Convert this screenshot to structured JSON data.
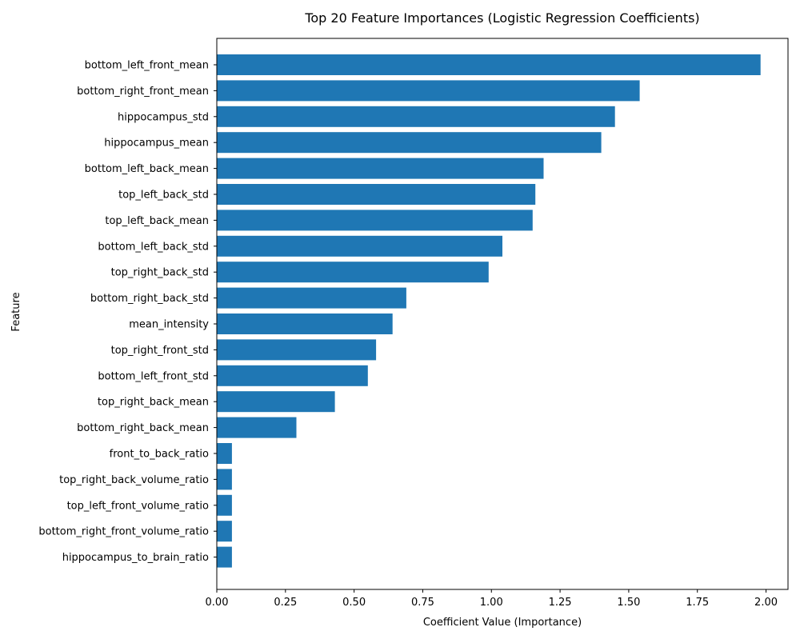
{
  "chart_data": {
    "type": "bar",
    "orientation": "horizontal",
    "title": "Top 20 Feature Importances (Logistic Regression Coefficients)",
    "xlabel": "Coefficient Value (Importance)",
    "ylabel": "Feature",
    "xlim": [
      0,
      2.08
    ],
    "x_ticks": [
      "0.00",
      "0.25",
      "0.50",
      "0.75",
      "1.00",
      "1.25",
      "1.50",
      "1.75",
      "2.00"
    ],
    "grid": false,
    "bar_color": "#1f77b4",
    "categories": [
      "bottom_left_front_mean",
      "bottom_right_front_mean",
      "hippocampus_std",
      "hippocampus_mean",
      "bottom_left_back_mean",
      "top_left_back_std",
      "top_left_back_mean",
      "bottom_left_back_std",
      "top_right_back_std",
      "bottom_right_back_std",
      "mean_intensity",
      "top_right_front_std",
      "bottom_left_front_std",
      "top_right_back_mean",
      "bottom_right_back_mean",
      "front_to_back_ratio",
      "top_right_back_volume_ratio",
      "top_left_front_volume_ratio",
      "bottom_right_front_volume_ratio",
      "hippocampus_to_brain_ratio"
    ],
    "values": [
      1.98,
      1.54,
      1.45,
      1.4,
      1.19,
      1.16,
      1.15,
      1.04,
      0.99,
      0.69,
      0.64,
      0.58,
      0.55,
      0.43,
      0.29,
      0.055,
      0.055,
      0.055,
      0.055,
      0.055
    ]
  }
}
